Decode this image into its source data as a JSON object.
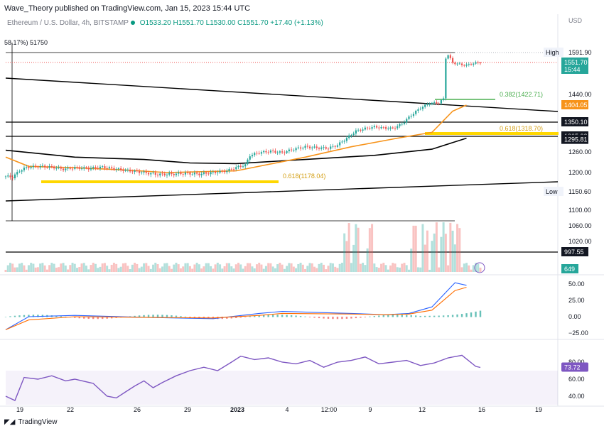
{
  "header": {
    "publisher": "Wave_Theory published on TradingView.com, Jan 15, 2023 15:44 UTC"
  },
  "symbol": {
    "name": "Ethereum / U.S. Dollar, 4h, BITSTAMP",
    "open": "O1533.20",
    "high": "H1551.70",
    "low": "L1530.00",
    "close": "C1551.70",
    "change": "+17.40 (+1.13%)",
    "vol_readout": "58.17%) 51750"
  },
  "currency": "USD",
  "footer": {
    "brand": "TradingView",
    "logo": "tradingview-logo-icon"
  },
  "colors": {
    "up": "#26a69a",
    "down": "#ef5350",
    "ema": "#f7931a",
    "sma": "#000000",
    "fib": "#ffd700",
    "fib_green": "#4caf50",
    "macd": "#2962ff",
    "signal": "#ff6d00",
    "rsi": "#7e57c2"
  },
  "chart_data": {
    "type": "candlestick",
    "xlabels": [
      "19",
      "22",
      "26",
      "29",
      "2023",
      "4",
      "12:00",
      "9",
      "12",
      "16",
      "19"
    ],
    "price_axis": {
      "ticks": [
        1591.9,
        1551.7,
        1440.0,
        1404.05,
        1350.1,
        1305.38,
        1295.81,
        1260.0,
        1200.0,
        1150.6,
        1100.0,
        1060.0,
        1020.0,
        997.55
      ],
      "labels": [
        "1591.90",
        "1551.70",
        "1440.00",
        "1404.05",
        "1350.10",
        "1305.38",
        "1295.81",
        "1260.00",
        "1200.00",
        "1150.60",
        "1100.00",
        "1060.00",
        "1020.00",
        "997.55"
      ]
    },
    "badges": [
      {
        "name": "high",
        "label": "High",
        "value": "1591.90"
      },
      {
        "name": "last",
        "value": "1551.70",
        "sub": "15:44"
      },
      {
        "name": "ema",
        "value": "1404.05"
      },
      {
        "name": "h1350",
        "value": "1350.10"
      },
      {
        "name": "h1305",
        "value": "1305.38"
      },
      {
        "name": "h1295",
        "value": "1295.81"
      },
      {
        "name": "low",
        "label": "Low",
        "value": "1150.60"
      },
      {
        "name": "h997",
        "value": "997.55"
      },
      {
        "name": "vol",
        "value": "649"
      }
    ],
    "fib_labels": [
      {
        "text": "0.382(1422.71)",
        "color": "green"
      },
      {
        "text": "0.618(1318.70)",
        "color": "gold"
      },
      {
        "text": "0.618(1178.04)",
        "color": "gold"
      }
    ],
    "macd_axis": {
      "ticks": [
        50,
        25,
        0,
        -25
      ],
      "labels": [
        "50.00",
        "25.00",
        "0.00",
        "−25.00"
      ]
    },
    "rsi_axis": {
      "ticks": [
        80,
        60,
        40
      ],
      "labels": [
        "80.00",
        "60.00",
        "40.00"
      ]
    },
    "rsi_last": "73.72",
    "price_path": [
      [
        0,
        1190
      ],
      [
        3,
        1188
      ],
      [
        6,
        1205
      ],
      [
        9,
        1215
      ],
      [
        14,
        1218
      ],
      [
        20,
        1216
      ],
      [
        25,
        1210
      ],
      [
        30,
        1214
      ],
      [
        36,
        1212
      ],
      [
        42,
        1216
      ],
      [
        48,
        1210
      ],
      [
        54,
        1205
      ],
      [
        60,
        1200
      ],
      [
        66,
        1195
      ],
      [
        72,
        1196
      ],
      [
        78,
        1198
      ],
      [
        84,
        1196
      ],
      [
        90,
        1200
      ],
      [
        96,
        1205
      ],
      [
        100,
        1215
      ],
      [
        104,
        1222
      ],
      [
        106,
        1250
      ],
      [
        110,
        1258
      ],
      [
        115,
        1262
      ],
      [
        120,
        1258
      ],
      [
        125,
        1268
      ],
      [
        130,
        1275
      ],
      [
        135,
        1272
      ],
      [
        140,
        1271
      ],
      [
        144,
        1280
      ],
      [
        148,
        1300
      ],
      [
        152,
        1322
      ],
      [
        156,
        1330
      ],
      [
        160,
        1335
      ],
      [
        164,
        1332
      ],
      [
        168,
        1330
      ],
      [
        172,
        1345
      ],
      [
        176,
        1372
      ],
      [
        180,
        1395
      ],
      [
        184,
        1410
      ],
      [
        188,
        1412
      ],
      [
        190,
        1425
      ],
      [
        191,
        1570
      ],
      [
        192,
        1582
      ],
      [
        194,
        1551
      ],
      [
        197,
        1545
      ],
      [
        200,
        1542
      ],
      [
        203,
        1549
      ],
      [
        206,
        1551.7
      ]
    ],
    "ema_path": [
      [
        0,
        1245
      ],
      [
        10,
        1218
      ],
      [
        30,
        1214
      ],
      [
        50,
        1208
      ],
      [
        70,
        1200
      ],
      [
        100,
        1205
      ],
      [
        130,
        1245
      ],
      [
        150,
        1275
      ],
      [
        170,
        1300
      ],
      [
        185,
        1318
      ],
      [
        194,
        1385
      ],
      [
        200,
        1404
      ]
    ],
    "sma_path": [
      [
        0,
        1265
      ],
      [
        30,
        1245
      ],
      [
        60,
        1238
      ],
      [
        80,
        1228
      ],
      [
        100,
        1226
      ],
      [
        130,
        1238
      ],
      [
        160,
        1250
      ],
      [
        185,
        1268
      ],
      [
        200,
        1300
      ]
    ],
    "macd": {
      "macd_path": [
        [
          0,
          -20
        ],
        [
          10,
          0
        ],
        [
          30,
          2
        ],
        [
          60,
          -1
        ],
        [
          90,
          -3
        ],
        [
          110,
          5
        ],
        [
          120,
          8
        ],
        [
          150,
          5
        ],
        [
          165,
          3
        ],
        [
          175,
          5
        ],
        [
          185,
          15
        ],
        [
          195,
          52
        ],
        [
          200,
          48
        ]
      ],
      "signal_path": [
        [
          0,
          -20
        ],
        [
          10,
          -5
        ],
        [
          30,
          0
        ],
        [
          60,
          -1
        ],
        [
          90,
          -2
        ],
        [
          110,
          2
        ],
        [
          120,
          5
        ],
        [
          150,
          4
        ],
        [
          165,
          3
        ],
        [
          175,
          4
        ],
        [
          185,
          10
        ],
        [
          195,
          40
        ],
        [
          200,
          45
        ]
      ]
    },
    "rsi_path": [
      [
        0,
        40
      ],
      [
        4,
        35
      ],
      [
        8,
        62
      ],
      [
        14,
        60
      ],
      [
        20,
        64
      ],
      [
        26,
        58
      ],
      [
        30,
        60
      ],
      [
        38,
        55
      ],
      [
        44,
        40
      ],
      [
        48,
        38
      ],
      [
        52,
        45
      ],
      [
        56,
        52
      ],
      [
        60,
        58
      ],
      [
        64,
        50
      ],
      [
        68,
        56
      ],
      [
        74,
        64
      ],
      [
        80,
        70
      ],
      [
        86,
        74
      ],
      [
        92,
        70
      ],
      [
        98,
        80
      ],
      [
        102,
        87
      ],
      [
        108,
        83
      ],
      [
        114,
        85
      ],
      [
        120,
        80
      ],
      [
        126,
        78
      ],
      [
        132,
        82
      ],
      [
        138,
        74
      ],
      [
        144,
        80
      ],
      [
        150,
        82
      ],
      [
        156,
        86
      ],
      [
        162,
        78
      ],
      [
        168,
        80
      ],
      [
        174,
        82
      ],
      [
        180,
        76
      ],
      [
        186,
        79
      ],
      [
        192,
        85
      ],
      [
        198,
        88
      ],
      [
        204,
        75
      ],
      [
        206,
        73.72
      ]
    ]
  }
}
